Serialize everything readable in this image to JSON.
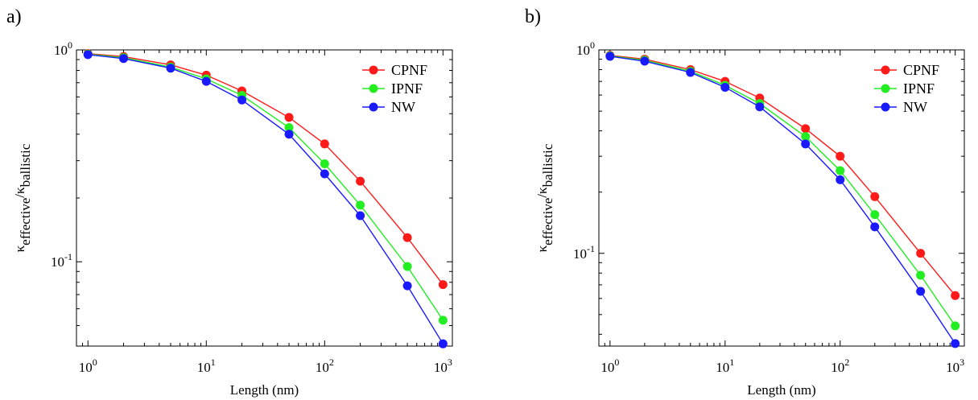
{
  "chart_data": [
    {
      "type": "line",
      "panel_label": "a)",
      "xlabel": "Length (nm)",
      "ylabel": {
        "base": "κ",
        "sub1": "effective",
        "sep": "/κ",
        "sub2": "ballistic"
      },
      "xscale": "log",
      "yscale": "log",
      "xlim": [
        0.8,
        1200
      ],
      "ylim": [
        0.04,
        1.0
      ],
      "x_ticks": [
        {
          "value": 1,
          "base": "10",
          "exp": "0"
        },
        {
          "value": 10,
          "base": "10",
          "exp": "1"
        },
        {
          "value": 100,
          "base": "10",
          "exp": "2"
        },
        {
          "value": 1000,
          "base": "10",
          "exp": "3"
        }
      ],
      "y_ticks": [
        {
          "value": 1,
          "base": "10",
          "exp": "0"
        },
        {
          "value": 0.1,
          "base": "10",
          "exp": "-1"
        }
      ],
      "legend_position": "top-right",
      "grid": false,
      "x": [
        1,
        2,
        5,
        10,
        20,
        50,
        100,
        200,
        500,
        1000
      ],
      "series": [
        {
          "name": "CPNF",
          "color": "#ff1a1a",
          "values": [
            0.96,
            0.93,
            0.85,
            0.76,
            0.64,
            0.48,
            0.36,
            0.24,
            0.13,
            0.078
          ]
        },
        {
          "name": "IPNF",
          "color": "#22ee22",
          "values": [
            0.955,
            0.92,
            0.83,
            0.73,
            0.61,
            0.43,
            0.29,
            0.185,
            0.095,
            0.053
          ]
        },
        {
          "name": "NW",
          "color": "#1a1aff",
          "values": [
            0.95,
            0.91,
            0.82,
            0.71,
            0.58,
            0.4,
            0.26,
            0.165,
            0.077,
            0.041
          ]
        }
      ]
    },
    {
      "type": "line",
      "panel_label": "b)",
      "xlabel": "Length (nm)",
      "ylabel": {
        "base": "κ",
        "sub1": "effective",
        "sep": "/κ",
        "sub2": "ballistic"
      },
      "xscale": "log",
      "yscale": "log",
      "xlim": [
        0.8,
        1200
      ],
      "ylim": [
        0.035,
        1.0
      ],
      "x_ticks": [
        {
          "value": 1,
          "base": "10",
          "exp": "0"
        },
        {
          "value": 10,
          "base": "10",
          "exp": "1"
        },
        {
          "value": 100,
          "base": "10",
          "exp": "2"
        },
        {
          "value": 1000,
          "base": "10",
          "exp": "3"
        }
      ],
      "y_ticks": [
        {
          "value": 1,
          "base": "10",
          "exp": "0"
        },
        {
          "value": 0.1,
          "base": "10",
          "exp": "-1"
        }
      ],
      "legend_position": "top-right",
      "grid": false,
      "x": [
        1,
        2,
        5,
        10,
        20,
        50,
        100,
        200,
        500,
        1000
      ],
      "series": [
        {
          "name": "CPNF",
          "color": "#ff1a1a",
          "values": [
            0.94,
            0.9,
            0.8,
            0.7,
            0.58,
            0.41,
            0.3,
            0.19,
            0.1,
            0.062
          ]
        },
        {
          "name": "IPNF",
          "color": "#22ee22",
          "values": [
            0.935,
            0.89,
            0.785,
            0.67,
            0.545,
            0.375,
            0.255,
            0.155,
            0.078,
            0.044
          ]
        },
        {
          "name": "NW",
          "color": "#1a1aff",
          "values": [
            0.93,
            0.88,
            0.775,
            0.655,
            0.525,
            0.345,
            0.23,
            0.135,
            0.065,
            0.036
          ]
        }
      ]
    }
  ]
}
